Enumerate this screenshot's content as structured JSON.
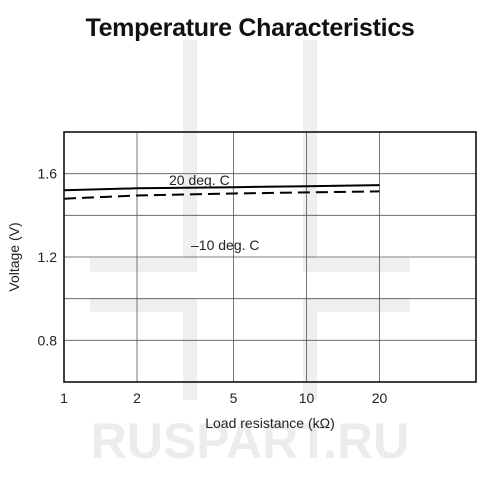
{
  "title": "Temperature Characteristics",
  "watermark": "RUSPART.RU",
  "chart_data": {
    "type": "line",
    "title": "Temperature Characteristics",
    "xlabel": "Load resistance (kΩ)",
    "ylabel": "Voltage (V)",
    "xscale": "log",
    "xlim": [
      1,
      50
    ],
    "ylim": [
      0.6,
      1.8
    ],
    "xticks": [
      1,
      2,
      5,
      10,
      20
    ],
    "xtick_labels": [
      "1",
      "2",
      "5",
      "10",
      "20"
    ],
    "yticks": [
      0.8,
      1.2,
      1.6
    ],
    "ytick_labels": [
      "0.8",
      "1.2",
      "1.6"
    ],
    "grid": true,
    "series": [
      {
        "name": "20 deg. C",
        "style": "solid",
        "color": "#000000",
        "x": [
          1,
          2,
          5,
          10,
          20
        ],
        "y": [
          1.52,
          1.53,
          1.535,
          1.54,
          1.545
        ]
      },
      {
        "name": "–10 deg. C",
        "style": "dashed",
        "color": "#000000",
        "x": [
          1,
          2,
          5,
          10,
          20
        ],
        "y": [
          1.48,
          1.495,
          1.505,
          1.51,
          1.515
        ]
      }
    ]
  }
}
